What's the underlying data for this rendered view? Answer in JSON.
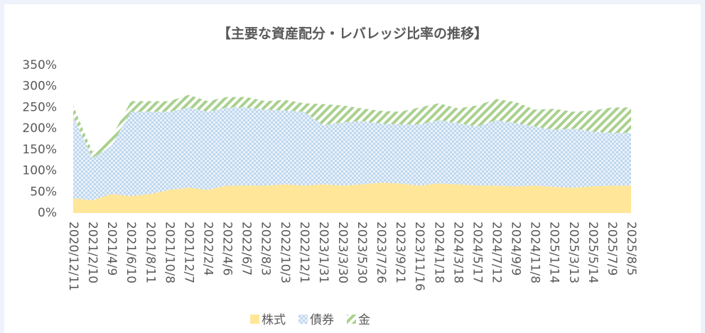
{
  "chart_data": {
    "type": "stacked_area",
    "title": "【主要な資産配分・レバレッジ比率の推移】",
    "categories": [
      "2020/12/11",
      "2021/2/10",
      "2021/4/9",
      "2021/6/10",
      "2021/8/11",
      "2021/10/8",
      "2021/12/7",
      "2022/2/4",
      "2022/4/6",
      "2022/6/7",
      "2022/8/3",
      "2022/10/3",
      "2022/12/1",
      "2023/1/31",
      "2023/3/30",
      "2023/5/30",
      "2023/7/26",
      "2023/9/21",
      "2023/11/16",
      "2024/1/18",
      "2024/3/18",
      "2024/5/17",
      "2024/7/12",
      "2024/9/9",
      "2024/11/8",
      "2025/1/14",
      "2025/3/13",
      "2025/5/14",
      "2025/7/9",
      "2025/8/5"
    ],
    "series": [
      {
        "name": "株式",
        "color": "#ffe699",
        "values": [
          35,
          30,
          45,
          40,
          45,
          55,
          60,
          55,
          65,
          65,
          65,
          68,
          65,
          68,
          65,
          68,
          72,
          70,
          65,
          70,
          68,
          65,
          65,
          63,
          65,
          62,
          60,
          63,
          65,
          65
        ]
      },
      {
        "name": "債券",
        "color": "#bdd7ee",
        "values": [
          195,
          100,
          115,
          200,
          195,
          185,
          190,
          185,
          185,
          185,
          180,
          175,
          175,
          140,
          150,
          150,
          140,
          140,
          145,
          150,
          145,
          140,
          155,
          150,
          140,
          135,
          140,
          130,
          125,
          125
        ]
      },
      {
        "name": "金",
        "color": "#a9d18e",
        "values": [
          25,
          15,
          20,
          25,
          25,
          25,
          30,
          25,
          25,
          25,
          20,
          25,
          20,
          50,
          40,
          30,
          30,
          30,
          40,
          40,
          35,
          50,
          50,
          50,
          40,
          50,
          40,
          50,
          60,
          60
        ]
      }
    ],
    "ylim": [
      0,
      350
    ],
    "yticks": [
      {
        "value": 0,
        "label": "0%"
      },
      {
        "value": 50,
        "label": "50%"
      },
      {
        "value": 100,
        "label": "100%"
      },
      {
        "value": 150,
        "label": "150%"
      },
      {
        "value": 200,
        "label": "200%"
      },
      {
        "value": 250,
        "label": "250%"
      },
      {
        "value": 300,
        "label": "300%"
      },
      {
        "value": 350,
        "label": "350%"
      }
    ],
    "grid": false
  }
}
